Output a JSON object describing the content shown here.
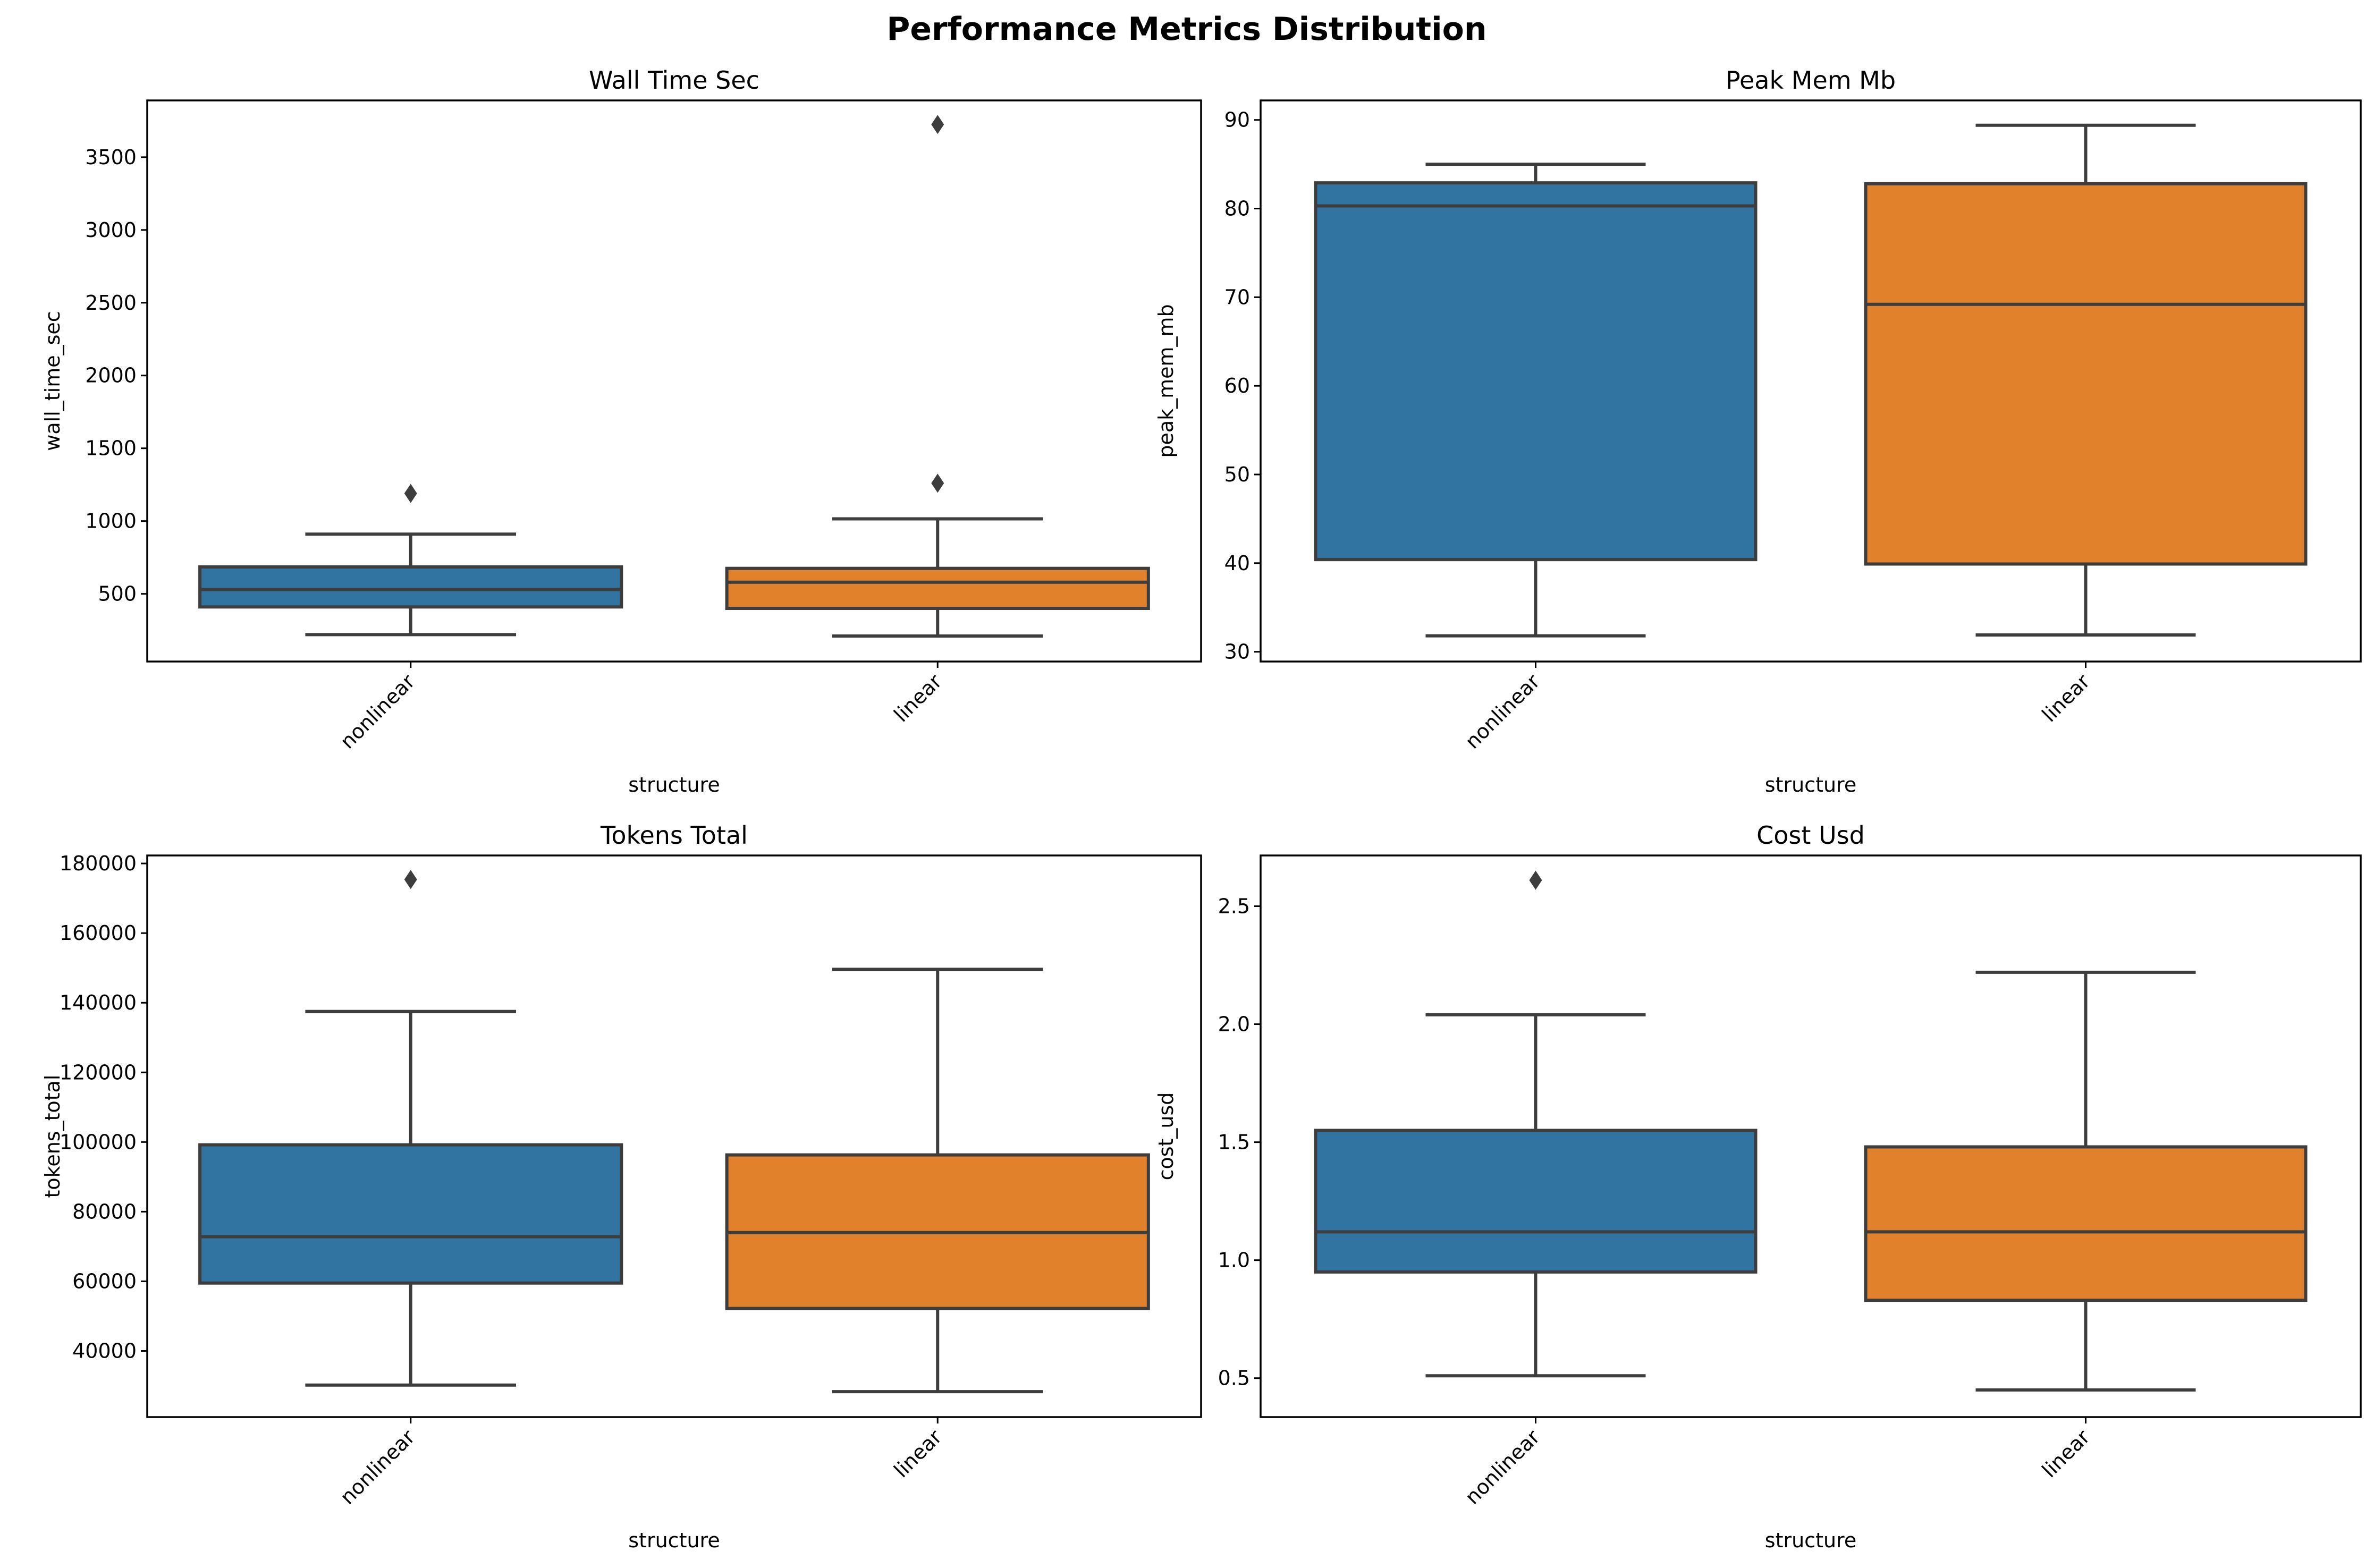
{
  "figure": {
    "title": "Performance Metrics Distribution"
  },
  "chart_data": [
    {
      "type": "box",
      "title": "Wall Time Sec",
      "xlabel": "structure",
      "ylabel": "wall_time_sec",
      "categories": [
        "nonlinear",
        "linear"
      ],
      "colors": [
        "#3274a1",
        "#e1812c"
      ],
      "ylim": [
        35,
        3890
      ],
      "yticks": [
        500,
        1000,
        1500,
        2000,
        2500,
        3000,
        3500
      ],
      "boxes": [
        {
          "category": "nonlinear",
          "whislo": 220,
          "q1": 410,
          "med": 530,
          "q3": 685,
          "whishi": 910,
          "fliers": [
            1190
          ]
        },
        {
          "category": "linear",
          "whislo": 210,
          "q1": 400,
          "med": 580,
          "q3": 675,
          "whishi": 1015,
          "fliers": [
            1260,
            3725
          ]
        }
      ]
    },
    {
      "type": "box",
      "title": "Peak Mem Mb",
      "xlabel": "structure",
      "ylabel": "peak_mem_mb",
      "categories": [
        "nonlinear",
        "linear"
      ],
      "colors": [
        "#3274a1",
        "#e1812c"
      ],
      "ylim": [
        28.9,
        92.2
      ],
      "yticks": [
        30,
        40,
        50,
        60,
        70,
        80,
        90
      ],
      "boxes": [
        {
          "category": "nonlinear",
          "whislo": 31.8,
          "q1": 40.4,
          "med": 80.3,
          "q3": 82.9,
          "whishi": 85.0,
          "fliers": []
        },
        {
          "category": "linear",
          "whislo": 31.9,
          "q1": 39.9,
          "med": 69.2,
          "q3": 82.8,
          "whishi": 89.4,
          "fliers": []
        }
      ]
    },
    {
      "type": "box",
      "title": "Tokens Total",
      "xlabel": "structure",
      "ylabel": "tokens_total",
      "categories": [
        "nonlinear",
        "linear"
      ],
      "colors": [
        "#3274a1",
        "#e1812c"
      ],
      "ylim": [
        21000,
        182300
      ],
      "yticks": [
        40000,
        60000,
        80000,
        100000,
        120000,
        140000,
        160000,
        180000
      ],
      "boxes": [
        {
          "category": "nonlinear",
          "whislo": 30200,
          "q1": 59500,
          "med": 72800,
          "q3": 99200,
          "whishi": 137500,
          "fliers": [
            175400
          ]
        },
        {
          "category": "linear",
          "whislo": 28300,
          "q1": 52200,
          "med": 74000,
          "q3": 96300,
          "whishi": 149600,
          "fliers": []
        }
      ]
    },
    {
      "type": "box",
      "title": "Cost Usd",
      "xlabel": "structure",
      "ylabel": "cost_usd",
      "categories": [
        "nonlinear",
        "linear"
      ],
      "colors": [
        "#3274a1",
        "#e1812c"
      ],
      "ylim": [
        0.335,
        2.715
      ],
      "yticks": [
        0.5,
        1.0,
        1.5,
        2.0,
        2.5
      ],
      "ytick_labels": [
        "0.5",
        "1.0",
        "1.5",
        "2.0",
        "2.5"
      ],
      "boxes": [
        {
          "category": "nonlinear",
          "whislo": 0.51,
          "q1": 0.95,
          "med": 1.12,
          "q3": 1.55,
          "whishi": 2.04,
          "fliers": [
            2.61
          ]
        },
        {
          "category": "linear",
          "whislo": 0.45,
          "q1": 0.83,
          "med": 1.12,
          "q3": 1.48,
          "whishi": 2.22,
          "fliers": []
        }
      ]
    }
  ]
}
